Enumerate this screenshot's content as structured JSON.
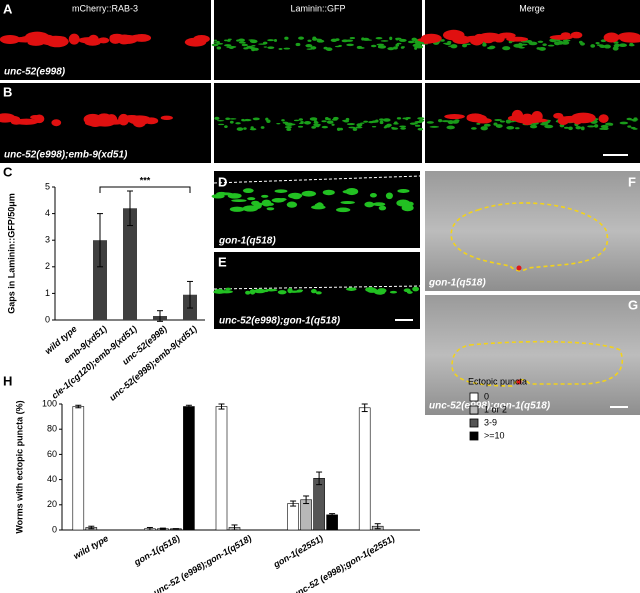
{
  "figure": {
    "panel_letters": [
      "A",
      "B",
      "C",
      "D",
      "E",
      "F",
      "G",
      "H"
    ],
    "columns": [
      "mCherry::RAB-3",
      "Laminin::GFP",
      "Merge"
    ],
    "genotypes": [
      "unc-52(e998)",
      "unc-52(e998);emb-9(xd51)",
      "gon-1(q518)",
      "unc-52(e998);gon-1(q518)",
      "gon-1(q518)",
      "unc-52(e998);gon-1(q518)"
    ]
  },
  "chart_data": [
    {
      "type": "bar",
      "y_label": "Gaps in Laminin::GFP/50μm",
      "categories": [
        "wild type",
        "emb-9(xd51)",
        "cle-1(cg120);emb-9(xd51)",
        "unc-52(e998)",
        "unc-52(e998);emb-9(xd51)"
      ],
      "values": [
        0,
        3.0,
        4.2,
        0.15,
        0.95
      ],
      "errors": [
        0,
        1.0,
        0.65,
        0.2,
        0.5
      ],
      "color": "#404040",
      "annotation": "***",
      "ylim": [
        0,
        5
      ],
      "yticks": [
        0,
        1,
        2,
        3,
        4,
        5
      ]
    },
    {
      "type": "grouped_bar",
      "y_label": "Worms with ectopic puncta (%)",
      "legend_title": "Ectopic puncta",
      "categories": [
        "wild type",
        "gon-1(q518)",
        "unc-52 (e998);gon-1(q518)",
        "gon-1(e2551)",
        "unc-52 (e998);gon-1(e2551)"
      ],
      "series": [
        {
          "name": "0",
          "color": "#ffffff",
          "values": [
            98,
            1,
            98,
            21,
            97
          ],
          "errors": [
            1,
            1,
            2,
            2,
            3
          ]
        },
        {
          "name": "1 or 2",
          "color": "#b8b8b8",
          "values": [
            2,
            1,
            2,
            24,
            3
          ],
          "errors": [
            1,
            0.5,
            2,
            3,
            2
          ]
        },
        {
          "name": "3-9",
          "color": "#555555",
          "values": [
            0,
            1,
            0,
            41,
            0
          ],
          "errors": [
            0,
            0,
            0,
            5,
            0
          ]
        },
        {
          "name": ">=10",
          "color": "#000000",
          "values": [
            0,
            98,
            0,
            12,
            0
          ],
          "errors": [
            0,
            1,
            0,
            1,
            0
          ]
        }
      ],
      "ylim": [
        0,
        100
      ],
      "yticks": [
        0,
        20,
        40,
        60,
        80,
        100
      ]
    }
  ]
}
